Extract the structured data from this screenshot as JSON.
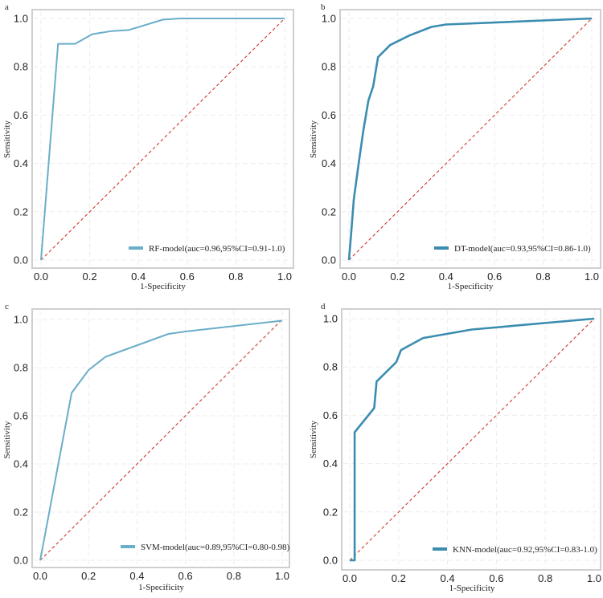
{
  "chart_data": [
    {
      "panel": "a",
      "type": "line",
      "xlabel": "1-Specificity",
      "ylabel": "Sensitivity",
      "xlim": [
        0,
        1
      ],
      "ylim": [
        0,
        1
      ],
      "xticks": [
        "0.0",
        "0.2",
        "0.4",
        "0.6",
        "0.8",
        "1.0"
      ],
      "yticks": [
        "0.0",
        "0.2",
        "0.4",
        "0.6",
        "0.8",
        "1.0"
      ],
      "grid": true,
      "color": "#6aaec9",
      "series": [
        {
          "name": "RF-model(auc=0.96,95%CI=0.91-1.0)",
          "x": [
            0.0,
            0.07,
            0.14,
            0.21,
            0.29,
            0.36,
            0.5,
            0.57,
            1.0
          ],
          "y": [
            0.0,
            0.895,
            0.895,
            0.935,
            0.948,
            0.952,
            0.995,
            1.0,
            1.0
          ]
        }
      ],
      "reference_line": [
        [
          0,
          0
        ],
        [
          1,
          1
        ]
      ],
      "legend": "bottom-right"
    },
    {
      "panel": "b",
      "type": "line",
      "xlabel": "1-Specificity",
      "ylabel": "Sensitivity",
      "xlim": [
        0,
        1
      ],
      "ylim": [
        0,
        1
      ],
      "xticks": [
        "0.0",
        "0.2",
        "0.4",
        "0.6",
        "0.8",
        "1.0"
      ],
      "yticks": [
        "0.0",
        "0.2",
        "0.4",
        "0.6",
        "0.8",
        "1.0"
      ],
      "grid": true,
      "color": "#3b8db0",
      "series": [
        {
          "name": "DT-model(auc=0.93,95%CI=0.86-1.0)",
          "x": [
            0.0,
            0.01,
            0.02,
            0.04,
            0.06,
            0.08,
            0.1,
            0.12,
            0.14,
            0.17,
            0.25,
            0.34,
            0.4,
            1.0
          ],
          "y": [
            0.0,
            0.12,
            0.25,
            0.4,
            0.54,
            0.66,
            0.72,
            0.84,
            0.86,
            0.89,
            0.93,
            0.965,
            0.975,
            1.0
          ]
        }
      ],
      "reference_line": [
        [
          0,
          0
        ],
        [
          1,
          1
        ]
      ],
      "legend": "bottom-right"
    },
    {
      "panel": "c",
      "type": "line",
      "xlabel": "1-Specificity",
      "ylabel": "Sensitivity",
      "xlim": [
        0,
        1
      ],
      "ylim": [
        0,
        1
      ],
      "xticks": [
        "0.0",
        "0.2",
        "0.4",
        "0.6",
        "0.8",
        "1.0"
      ],
      "yticks": [
        "0.0",
        "0.2",
        "0.4",
        "0.6",
        "0.8",
        "1.0"
      ],
      "grid": true,
      "color": "#6aaec9",
      "series": [
        {
          "name": "SVM-model(auc=0.89,95%CI=0.80-0.98)",
          "x": [
            0.0,
            0.13,
            0.2,
            0.27,
            0.53,
            0.6,
            1.0
          ],
          "y": [
            0.0,
            0.695,
            0.79,
            0.845,
            0.94,
            0.95,
            0.995
          ]
        }
      ],
      "reference_line": [
        [
          0,
          0
        ],
        [
          1,
          1
        ]
      ],
      "legend": "bottom-right"
    },
    {
      "panel": "d",
      "type": "line",
      "xlabel": "1-Specificity",
      "ylabel": "Sensitivity",
      "xlim": [
        0,
        1
      ],
      "ylim": [
        0,
        1
      ],
      "xticks": [
        "0.0",
        "0.2",
        "0.4",
        "0.6",
        "0.8",
        "1.0"
      ],
      "yticks": [
        "0.0",
        "0.2",
        "0.4",
        "0.6",
        "0.8",
        "1.0"
      ],
      "grid": true,
      "color": "#3b8db0",
      "series": [
        {
          "name": "KNN-model(auc=0.92,95%CI=0.83-1.0)",
          "x": [
            0.0,
            0.02,
            0.02,
            0.1,
            0.11,
            0.19,
            0.21,
            0.3,
            0.5,
            1.0
          ],
          "y": [
            0.0,
            0.0,
            0.53,
            0.63,
            0.74,
            0.82,
            0.87,
            0.92,
            0.955,
            1.0
          ]
        }
      ],
      "reference_line": [
        [
          0,
          0
        ],
        [
          1,
          1
        ]
      ],
      "legend": "bottom-right"
    }
  ]
}
